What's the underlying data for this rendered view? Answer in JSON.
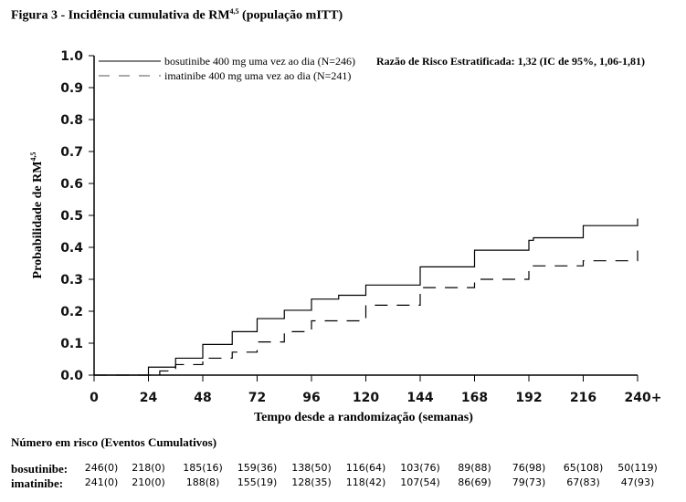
{
  "title": "Figura 3 - Incidência cumulativa de RM",
  "title_sup": "4,5",
  "title_suffix": " (população mITT)",
  "chart_data": {
    "type": "line",
    "title": "Figura 3 - Incidência cumulativa de RM4,5 (população mITT)",
    "xlabel": "Tempo desde a randomização (semanas)",
    "ylabel": "Probabilidade de RM",
    "ylabel_sup": "4,5",
    "xlim": [
      0,
      240
    ],
    "ylim": [
      0,
      1
    ],
    "x_ticks": [
      "0",
      "24",
      "48",
      "72",
      "96",
      "120",
      "144",
      "168",
      "192",
      "216",
      "240+"
    ],
    "x_tick_values": [
      0,
      24,
      48,
      72,
      96,
      120,
      144,
      168,
      192,
      216,
      240
    ],
    "y_ticks": [
      "0.0",
      "0.1",
      "0.2",
      "0.3",
      "0.4",
      "0.5",
      "0.6",
      "0.7",
      "0.8",
      "0.9",
      "1.0"
    ],
    "y_tick_values": [
      0,
      0.1,
      0.2,
      0.3,
      0.4,
      0.5,
      0.6,
      0.7,
      0.8,
      0.9,
      1.0
    ],
    "annotation": "Razão de Risco Estratificada: 1,32 (IC de 95%, 1,06-1,81)",
    "series": [
      {
        "name": "bosutinibe 400 mg uma vez ao dia (N=246)",
        "style": "solid",
        "color": "#000000",
        "x": [
          0,
          24,
          36,
          48,
          61,
          72,
          84,
          96,
          108,
          120,
          144,
          168,
          192,
          194,
          216,
          240,
          240
        ],
        "y": [
          0,
          0.025,
          0.053,
          0.096,
          0.136,
          0.177,
          0.203,
          0.238,
          0.25,
          0.282,
          0.339,
          0.391,
          0.422,
          0.43,
          0.468,
          0.468,
          0.49
        ]
      },
      {
        "name": "imatinibe 400 mg uma vez ao dia (N=241)",
        "style": "dashed",
        "color": "#000000",
        "x": [
          0,
          29,
          36,
          48,
          61,
          72,
          84,
          96,
          120,
          144,
          168,
          192,
          216,
          240,
          240
        ],
        "y": [
          0,
          0.013,
          0.033,
          0.053,
          0.072,
          0.104,
          0.136,
          0.17,
          0.219,
          0.274,
          0.3,
          0.342,
          0.358,
          0.366,
          0.39
        ]
      }
    ]
  },
  "risk_table": {
    "title": "Número em risco (Eventos Cumulativos)",
    "rows": [
      {
        "label": "bosutinibe:",
        "values": [
          "246(0)",
          "218(0)",
          "185(16)",
          "159(36)",
          "138(50)",
          "116(64)",
          "103(76)",
          "89(88)",
          "76(98)",
          "65(108)",
          "50(119)"
        ]
      },
      {
        "label": "imatinibe:",
        "values": [
          "241(0)",
          "210(0)",
          "188(8)",
          "155(19)",
          "128(35)",
          "118(42)",
          "107(54)",
          "86(69)",
          "79(73)",
          "67(83)",
          "47(93)"
        ]
      }
    ]
  }
}
